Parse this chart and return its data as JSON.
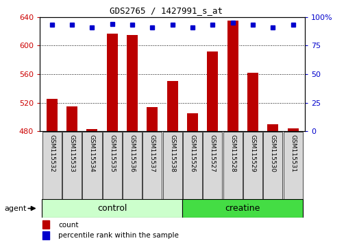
{
  "title": "GDS2765 / 1427991_s_at",
  "samples": [
    "GSM115532",
    "GSM115533",
    "GSM115534",
    "GSM115535",
    "GSM115536",
    "GSM115537",
    "GSM115538",
    "GSM115526",
    "GSM115527",
    "GSM115528",
    "GSM115529",
    "GSM115530",
    "GSM115531"
  ],
  "counts": [
    525,
    515,
    483,
    617,
    615,
    514,
    550,
    505,
    592,
    635,
    562,
    490,
    484
  ],
  "percentiles": [
    93,
    93,
    91,
    94,
    93,
    91,
    93,
    91,
    93,
    95,
    93,
    91,
    93
  ],
  "groups": [
    "control",
    "control",
    "control",
    "control",
    "control",
    "control",
    "control",
    "creatine",
    "creatine",
    "creatine",
    "creatine",
    "creatine",
    "creatine"
  ],
  "bar_color": "#bb0000",
  "dot_color": "#0000cc",
  "ylim_left": [
    480,
    640
  ],
  "ylim_right": [
    0,
    100
  ],
  "yticks_left": [
    480,
    520,
    560,
    600,
    640
  ],
  "yticks_right": [
    0,
    25,
    50,
    75,
    100
  ],
  "control_color": "#ccffcc",
  "creatine_color": "#44dd44",
  "agent_label": "agent",
  "group_label_control": "control",
  "group_label_creatine": "creatine",
  "legend_count": "count",
  "legend_percentile": "percentile rank within the sample",
  "tick_label_color_left": "#cc0000",
  "tick_label_color_right": "#0000cc",
  "n_control": 7,
  "n_creatine": 6
}
